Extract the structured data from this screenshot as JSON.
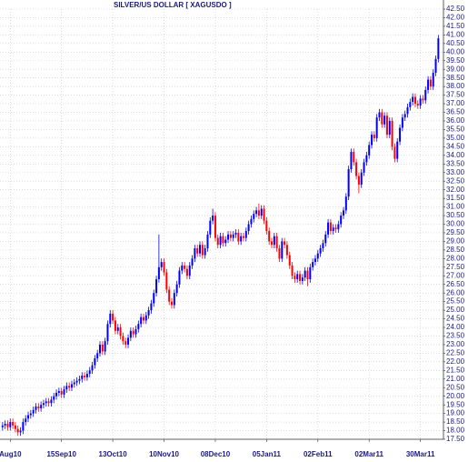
{
  "chart_data": {
    "type": "candlestick",
    "title": "SILVER/US DOLLAR [ XAGUSDO ]",
    "open": [
      18.2,
      18.3,
      18.4,
      18.2,
      18.5,
      18.3,
      18.1,
      17.9,
      18.0,
      18.5,
      18.7,
      18.9,
      19.0,
      19.2,
      19.4,
      19.3,
      19.5,
      19.6,
      19.7,
      19.6,
      19.8,
      20.0,
      20.2,
      20.3,
      20.1,
      20.4,
      20.6,
      20.5,
      20.7,
      20.8,
      20.9,
      21.0,
      21.2,
      21.1,
      21.3,
      21.5,
      21.8,
      22.2,
      22.5,
      23.0,
      22.6,
      23.2,
      24.2,
      24.8,
      24.4,
      23.8,
      24.0,
      23.5,
      23.2,
      23.0,
      23.4,
      23.8,
      23.6,
      23.9,
      24.2,
      24.6,
      24.4,
      24.7,
      25.0,
      25.4,
      26.0,
      26.8,
      27.5,
      27.8,
      27.2,
      26.2,
      25.5,
      25.3,
      26.0,
      26.5,
      27.3,
      27.6,
      27.4,
      27.0,
      27.6,
      28.0,
      28.6,
      28.3,
      28.8,
      28.2,
      28.6,
      29.4,
      30.2,
      30.5,
      29.2,
      28.8,
      29.3,
      28.9,
      29.1,
      29.4,
      29.2,
      29.4,
      29.5,
      29.0,
      29.3,
      29.2,
      29.6,
      30.0,
      30.3,
      30.6,
      30.8,
      30.5,
      30.9,
      30.2,
      29.6,
      29.0,
      28.8,
      29.3,
      28.6,
      28.0,
      29.0,
      28.8,
      28.2,
      27.6,
      27.0,
      26.8,
      27.1,
      26.7,
      26.9,
      27.3,
      26.8,
      27.5,
      27.8,
      28.0,
      28.3,
      28.6,
      28.9,
      29.4,
      30.1,
      29.6,
      29.8,
      29.7,
      30.0,
      30.5,
      30.8,
      31.6,
      33.2,
      34.2,
      33.6,
      32.8,
      32.3,
      33.0,
      33.6,
      34.0,
      34.6,
      35.2,
      35.0,
      36.2,
      36.5,
      35.8,
      36.3,
      35.2,
      36.0,
      34.5,
      33.8,
      34.8,
      35.6,
      36.2,
      36.4,
      36.8,
      37.1,
      37.4,
      37.0,
      36.9,
      37.3,
      37.2,
      37.8,
      38.4,
      38.0,
      38.8,
      39.6
    ],
    "high": [
      18.5,
      18.6,
      18.6,
      18.7,
      18.7,
      18.5,
      18.3,
      18.2,
      18.7,
      18.9,
      19.1,
      19.2,
      19.4,
      19.6,
      19.6,
      19.7,
      19.8,
      19.9,
      19.9,
      20.0,
      20.2,
      20.4,
      20.5,
      20.5,
      20.6,
      20.8,
      20.8,
      20.9,
      21.0,
      21.1,
      21.2,
      21.4,
      21.4,
      21.5,
      21.7,
      22.0,
      22.4,
      22.7,
      23.2,
      23.2,
      23.4,
      24.4,
      25.0,
      25.0,
      24.6,
      24.2,
      24.2,
      23.7,
      23.4,
      23.6,
      24.0,
      24.0,
      24.1,
      24.4,
      24.8,
      24.8,
      24.9,
      25.2,
      25.6,
      26.2,
      27.0,
      29.4,
      28.0,
      28.0,
      27.4,
      26.4,
      25.7,
      26.2,
      26.7,
      27.5,
      27.8,
      27.8,
      27.6,
      27.8,
      28.2,
      28.8,
      28.8,
      29.0,
      29.0,
      28.8,
      29.6,
      30.4,
      30.9,
      30.7,
      29.4,
      29.5,
      29.5,
      29.3,
      29.6,
      29.6,
      29.6,
      29.7,
      29.7,
      29.5,
      29.5,
      29.8,
      30.2,
      30.5,
      30.8,
      31.0,
      31.2,
      31.1,
      31.1,
      30.4,
      29.8,
      29.2,
      29.5,
      29.5,
      28.8,
      29.2,
      29.2,
      29.0,
      28.4,
      27.8,
      27.2,
      27.3,
      27.3,
      27.1,
      27.5,
      27.5,
      27.7,
      28.0,
      28.2,
      28.5,
      28.8,
      29.1,
      29.6,
      30.3,
      30.3,
      30.0,
      30.0,
      30.2,
      30.7,
      31.0,
      31.8,
      33.4,
      34.4,
      34.4,
      33.8,
      33.0,
      33.2,
      33.8,
      34.2,
      34.8,
      35.4,
      35.4,
      36.4,
      36.7,
      36.7,
      36.5,
      36.5,
      36.2,
      36.2,
      34.7,
      35.0,
      35.8,
      36.4,
      36.6,
      37.0,
      37.3,
      37.6,
      37.6,
      37.2,
      37.5,
      37.5,
      38.0,
      38.6,
      38.6,
      39.0,
      39.8,
      41.0
    ],
    "low": [
      18.0,
      18.1,
      18.0,
      18.0,
      18.1,
      17.9,
      17.7,
      17.7,
      17.8,
      18.3,
      18.5,
      18.7,
      18.8,
      19.0,
      19.1,
      19.1,
      19.3,
      19.4,
      19.4,
      19.4,
      19.6,
      19.8,
      20.0,
      19.9,
      19.9,
      20.2,
      20.3,
      20.3,
      20.5,
      20.6,
      20.7,
      20.8,
      20.9,
      20.9,
      21.1,
      21.3,
      21.6,
      22.0,
      22.3,
      22.4,
      22.4,
      23.0,
      24.0,
      24.2,
      23.6,
      23.6,
      23.3,
      23.0,
      22.8,
      22.8,
      23.2,
      23.4,
      23.4,
      23.7,
      24.0,
      24.2,
      24.2,
      24.5,
      24.8,
      25.2,
      25.8,
      26.6,
      27.3,
      27.0,
      26.0,
      25.3,
      25.1,
      25.1,
      25.8,
      26.3,
      27.1,
      27.2,
      26.8,
      26.8,
      27.4,
      27.8,
      28.1,
      28.1,
      28.0,
      28.0,
      28.4,
      29.2,
      30.0,
      29.0,
      28.6,
      28.6,
      28.7,
      28.7,
      28.9,
      29.0,
      29.0,
      29.2,
      28.8,
      28.8,
      29.0,
      29.0,
      29.4,
      29.8,
      30.1,
      30.4,
      30.3,
      30.3,
      30.0,
      29.4,
      28.8,
      28.6,
      28.6,
      28.4,
      27.8,
      27.8,
      28.6,
      28.0,
      27.4,
      26.8,
      26.6,
      26.6,
      26.5,
      26.5,
      26.7,
      26.4,
      26.6,
      27.3,
      27.6,
      27.8,
      28.1,
      28.4,
      28.7,
      29.2,
      29.4,
      29.4,
      29.5,
      29.5,
      29.8,
      30.3,
      30.6,
      31.4,
      33.0,
      33.4,
      32.6,
      31.8,
      32.1,
      32.8,
      33.4,
      33.8,
      34.4,
      34.8,
      34.8,
      36.0,
      35.6,
      35.6,
      35.0,
      35.0,
      34.3,
      33.6,
      33.6,
      34.6,
      35.4,
      36.0,
      36.2,
      36.6,
      36.9,
      36.8,
      36.7,
      36.7,
      37.0,
      37.0,
      37.6,
      37.8,
      37.8,
      38.6,
      39.4
    ],
    "close": [
      18.3,
      18.4,
      18.2,
      18.5,
      18.3,
      18.1,
      17.9,
      18.0,
      18.5,
      18.7,
      18.9,
      19.0,
      19.2,
      19.4,
      19.3,
      19.5,
      19.6,
      19.7,
      19.6,
      19.8,
      20.0,
      20.2,
      20.3,
      20.1,
      20.4,
      20.6,
      20.5,
      20.7,
      20.8,
      20.9,
      21.0,
      21.2,
      21.1,
      21.3,
      21.5,
      21.8,
      22.2,
      22.5,
      23.0,
      22.6,
      23.2,
      24.2,
      24.8,
      24.4,
      23.8,
      24.0,
      23.5,
      23.2,
      23.0,
      23.4,
      23.8,
      23.6,
      23.9,
      24.2,
      24.6,
      24.4,
      24.7,
      25.0,
      25.4,
      26.0,
      26.8,
      27.5,
      27.8,
      27.2,
      26.2,
      25.5,
      25.3,
      26.0,
      26.5,
      27.3,
      27.6,
      27.4,
      27.0,
      27.6,
      28.0,
      28.6,
      28.3,
      28.8,
      28.2,
      28.6,
      29.4,
      30.2,
      30.5,
      29.2,
      28.8,
      29.3,
      28.9,
      29.1,
      29.4,
      29.2,
      29.4,
      29.5,
      29.0,
      29.3,
      29.2,
      29.6,
      30.0,
      30.3,
      30.6,
      30.8,
      30.5,
      30.9,
      30.2,
      29.6,
      29.0,
      28.8,
      29.3,
      28.6,
      28.0,
      29.0,
      28.8,
      28.2,
      27.6,
      27.0,
      26.8,
      27.1,
      26.7,
      26.9,
      27.3,
      26.8,
      27.5,
      27.8,
      28.0,
      28.3,
      28.6,
      28.9,
      29.4,
      30.1,
      29.6,
      29.8,
      29.7,
      30.0,
      30.5,
      30.8,
      31.6,
      33.2,
      34.2,
      33.6,
      32.8,
      32.3,
      33.0,
      33.6,
      34.0,
      34.6,
      35.2,
      35.0,
      36.2,
      36.5,
      35.8,
      36.3,
      35.2,
      36.0,
      34.5,
      33.8,
      34.8,
      35.6,
      36.2,
      36.4,
      36.8,
      37.1,
      37.4,
      37.0,
      36.9,
      37.3,
      37.2,
      37.8,
      38.4,
      38.0,
      38.8,
      39.6,
      40.8
    ],
    "up_color": "#0000ff",
    "down_color": "#ff0000",
    "xlim": [
      -1,
      172
    ],
    "xticks": [
      {
        "value": 3,
        "label": "Aug10"
      },
      {
        "value": 23,
        "label": "15Sep10"
      },
      {
        "value": 43,
        "label": "13Oct10"
      },
      {
        "value": 63,
        "label": "10Nov10"
      },
      {
        "value": 83,
        "label": "08Dec10"
      },
      {
        "value": 103,
        "label": "05Jan11"
      },
      {
        "value": 123,
        "label": "02Feb11"
      },
      {
        "value": 143,
        "label": "02Mar11"
      },
      {
        "value": 163,
        "label": "30Mar11"
      }
    ],
    "ylim": [
      17.5,
      42.5
    ],
    "yticks": [
      {
        "value": 17.5,
        "label": "17.50"
      },
      {
        "value": 18,
        "label": "18.00"
      },
      {
        "value": 18.5,
        "label": "18.50"
      },
      {
        "value": 19,
        "label": "19.00"
      },
      {
        "value": 19.5,
        "label": "19.50"
      },
      {
        "value": 20,
        "label": "20.00"
      },
      {
        "value": 20.5,
        "label": "20.50"
      },
      {
        "value": 21,
        "label": "21.00"
      },
      {
        "value": 21.5,
        "label": "21.50"
      },
      {
        "value": 22,
        "label": "22.00"
      },
      {
        "value": 22.5,
        "label": "22.50"
      },
      {
        "value": 23,
        "label": "23.00"
      },
      {
        "value": 23.5,
        "label": "23.50"
      },
      {
        "value": 24,
        "label": "24.00"
      },
      {
        "value": 24.5,
        "label": "24.50"
      },
      {
        "value": 25,
        "label": "25.00"
      },
      {
        "value": 25.5,
        "label": "25.50"
      },
      {
        "value": 26,
        "label": "26.00"
      },
      {
        "value": 26.5,
        "label": "26.50"
      },
      {
        "value": 27,
        "label": "27.00"
      },
      {
        "value": 27.5,
        "label": "27.50"
      },
      {
        "value": 28,
        "label": "28.00"
      },
      {
        "value": 28.5,
        "label": "28.50"
      },
      {
        "value": 29,
        "label": "29.00"
      },
      {
        "value": 29.5,
        "label": "29.50"
      },
      {
        "value": 30,
        "label": "30.00"
      },
      {
        "value": 30.5,
        "label": "30.50"
      },
      {
        "value": 31,
        "label": "31.00"
      },
      {
        "value": 31.5,
        "label": "31.50"
      },
      {
        "value": 32,
        "label": "32.00"
      },
      {
        "value": 32.5,
        "label": "32.50"
      },
      {
        "value": 33,
        "label": "33.00"
      },
      {
        "value": 33.5,
        "label": "33.50"
      },
      {
        "value": 34,
        "label": "34.00"
      },
      {
        "value": 34.5,
        "label": "34.50"
      },
      {
        "value": 35,
        "label": "35.00"
      },
      {
        "value": 35.5,
        "label": "35.50"
      },
      {
        "value": 36,
        "label": "36.00"
      },
      {
        "value": 36.5,
        "label": "36.50"
      },
      {
        "value": 37,
        "label": "37.00"
      },
      {
        "value": 37.5,
        "label": "37.50"
      },
      {
        "value": 38,
        "label": "38.00"
      },
      {
        "value": 38.5,
        "label": "38.50"
      },
      {
        "value": 39,
        "label": "39.00"
      },
      {
        "value": 39.5,
        "label": "39.50"
      },
      {
        "value": 40,
        "label": "40.00"
      },
      {
        "value": 40.5,
        "label": "40.50"
      },
      {
        "value": 41,
        "label": "41.00"
      },
      {
        "value": 41.5,
        "label": "41.50"
      },
      {
        "value": 42,
        "label": "42.00"
      },
      {
        "value": 42.5,
        "label": "42.50"
      }
    ],
    "grid": true
  }
}
